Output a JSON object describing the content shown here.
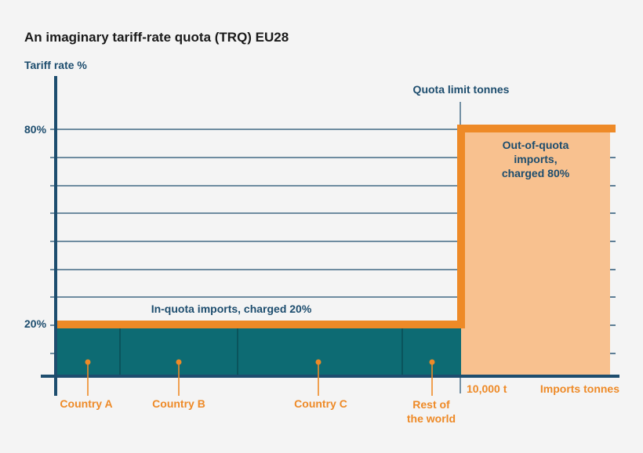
{
  "title": "An imaginary tariff-rate quota (TRQ) EU28",
  "y_axis_label": "Tariff rate %",
  "x_axis_label": "Imports tonnes",
  "quota_limit_label": "Quota limit tonnes",
  "quota_value_label": "10,000 t",
  "ticks": {
    "high": "80%",
    "low": "20%"
  },
  "in_quota_label": "In-quota imports, charged 20%",
  "out_quota_label": [
    "Out-of-quota",
    "imports,",
    "charged 80%"
  ],
  "countries": [
    "Country A",
    "Country B",
    "Country C"
  ],
  "rest_of_world": [
    "Rest of",
    "the world"
  ],
  "colors": {
    "axis": "#1d4d6e",
    "teal_fill": "#0d6b73",
    "orange_line": "#ee8a27",
    "peach_fill": "#f8c18f",
    "label_navy": "#1d4d6e",
    "label_orange": "#ee8a27"
  }
}
